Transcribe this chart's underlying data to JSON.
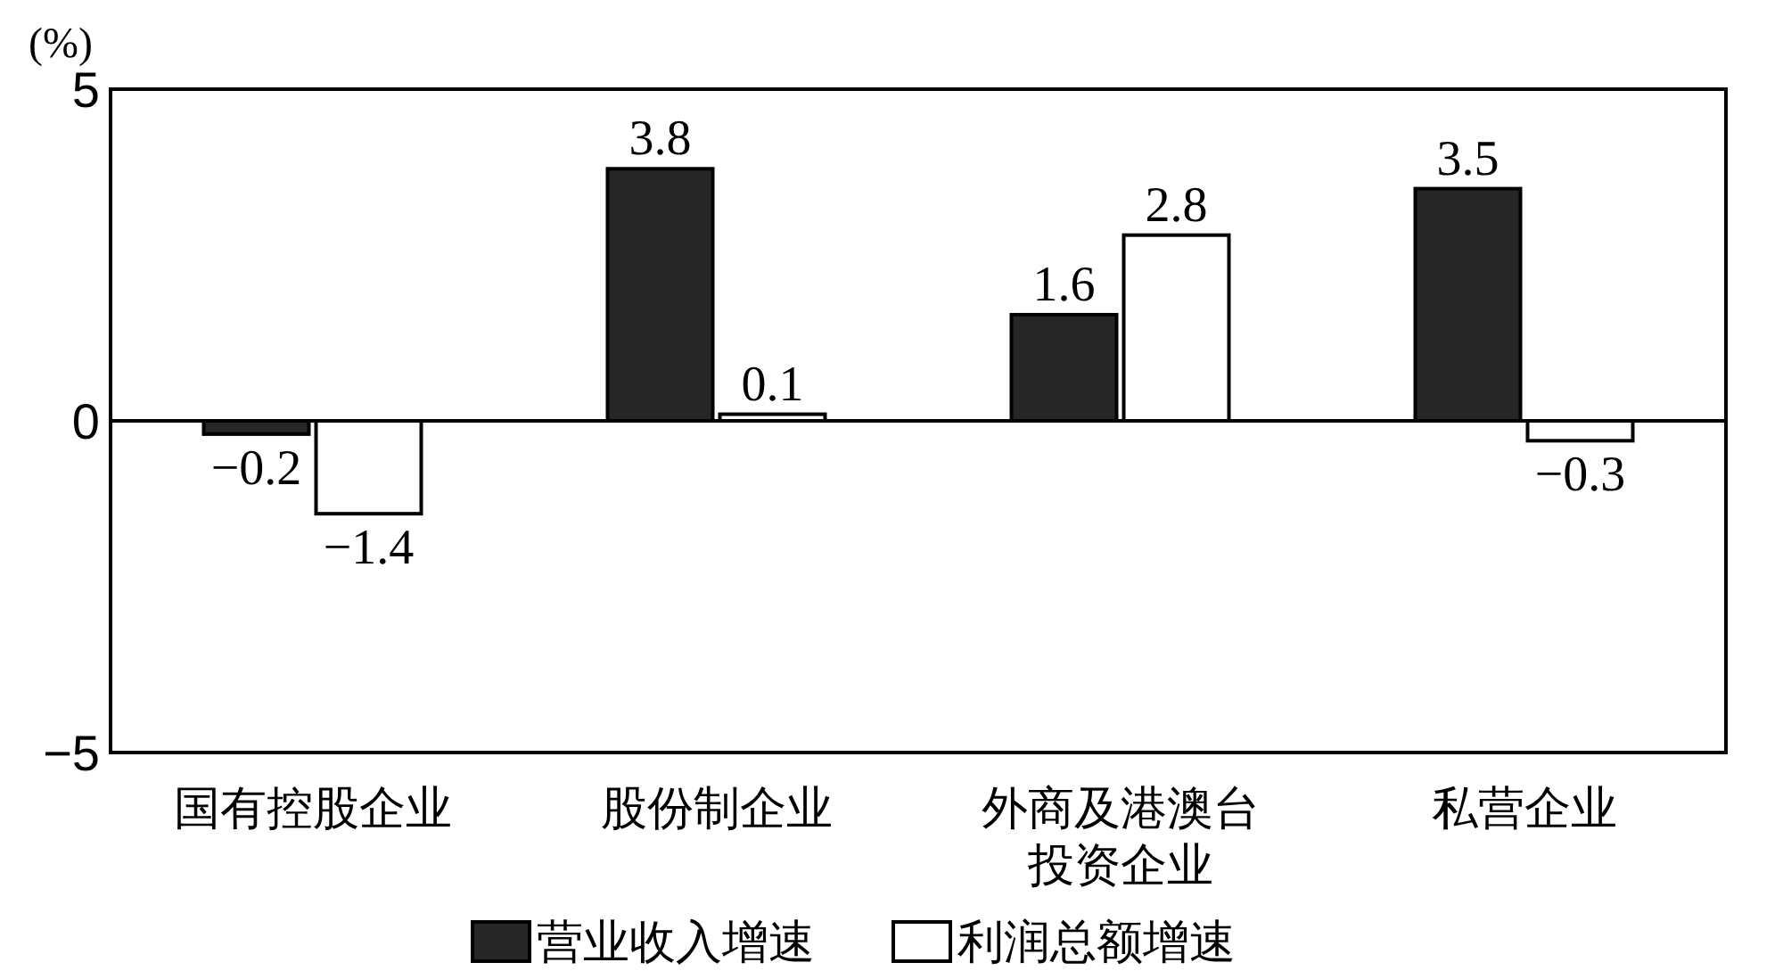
{
  "chart_data": {
    "type": "bar",
    "ylabel": "(%)",
    "categories": [
      "国有控股企业",
      "股份制企业",
      "外商及港澳台投资企业",
      "私营企业"
    ],
    "series": [
      {
        "name": "营业收入增速",
        "color": "#262626",
        "values": [
          -0.2,
          3.8,
          1.6,
          3.5
        ]
      },
      {
        "name": "利润总额增速",
        "color": "#ffffff",
        "values": [
          -1.4,
          0.1,
          2.8,
          -0.3
        ]
      }
    ],
    "ylim": [
      -5,
      5
    ],
    "yticks": [
      -5,
      0,
      5
    ],
    "data_labels": true,
    "legend": "bottom"
  }
}
